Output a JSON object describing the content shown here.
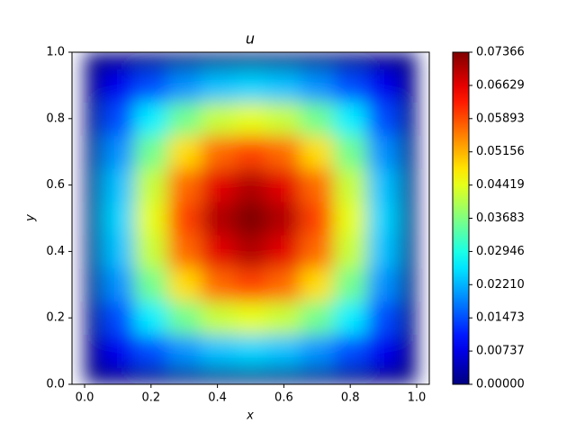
{
  "chart_data": {
    "type": "heatmap",
    "title": "u",
    "x_label": "x",
    "y_label": "y",
    "colormap": "jet",
    "x": [
      0,
      0.1,
      0.2,
      0.3,
      0.4,
      0.5,
      0.6,
      0.7,
      0.8,
      0.9,
      1
    ],
    "y": [
      0,
      0.1,
      0.2,
      0.3,
      0.4,
      0.5,
      0.6,
      0.7,
      0.8,
      0.9,
      1
    ],
    "z": [
      [
        0,
        0,
        0,
        0,
        0,
        0,
        0,
        0,
        0,
        0,
        0
      ],
      [
        0,
        0.008,
        0.0146,
        0.0197,
        0.0231,
        0.0243,
        0.0231,
        0.0197,
        0.0146,
        0.008,
        0
      ],
      [
        0,
        0.0146,
        0.0265,
        0.0358,
        0.042,
        0.0442,
        0.042,
        0.0358,
        0.0265,
        0.0146,
        0
      ],
      [
        0,
        0.0197,
        0.0358,
        0.0484,
        0.0567,
        0.0597,
        0.0567,
        0.0484,
        0.0358,
        0.0197,
        0
      ],
      [
        0,
        0.0231,
        0.042,
        0.0567,
        0.0665,
        0.07,
        0.0665,
        0.0567,
        0.042,
        0.0231,
        0
      ],
      [
        0,
        0.0243,
        0.0442,
        0.0597,
        0.07,
        0.0737,
        0.07,
        0.0597,
        0.0442,
        0.0243,
        0
      ],
      [
        0,
        0.0231,
        0.042,
        0.0567,
        0.0665,
        0.07,
        0.0665,
        0.0567,
        0.042,
        0.0231,
        0
      ],
      [
        0,
        0.0197,
        0.0358,
        0.0484,
        0.0567,
        0.0597,
        0.0567,
        0.0484,
        0.0358,
        0.0197,
        0
      ],
      [
        0,
        0.0146,
        0.0265,
        0.0358,
        0.042,
        0.0442,
        0.042,
        0.0358,
        0.0265,
        0.0146,
        0
      ],
      [
        0,
        0.008,
        0.0146,
        0.0197,
        0.0231,
        0.0243,
        0.0231,
        0.0197,
        0.0146,
        0.008,
        0
      ],
      [
        0,
        0,
        0,
        0,
        0,
        0,
        0,
        0,
        0,
        0,
        0
      ]
    ],
    "xlim": [
      -0.038,
      1.038
    ],
    "ylim": [
      0,
      1
    ],
    "xticks": [
      {
        "value": 0,
        "label": "0.0"
      },
      {
        "value": 0.2,
        "label": "0.2"
      },
      {
        "value": 0.4,
        "label": "0.4"
      },
      {
        "value": 0.6,
        "label": "0.6"
      },
      {
        "value": 0.8,
        "label": "0.8"
      },
      {
        "value": 1,
        "label": "1.0"
      }
    ],
    "yticks": [
      {
        "value": 0,
        "label": "0.0"
      },
      {
        "value": 0.2,
        "label": "0.2"
      },
      {
        "value": 0.4,
        "label": "0.4"
      },
      {
        "value": 0.6,
        "label": "0.6"
      },
      {
        "value": 0.8,
        "label": "0.8"
      },
      {
        "value": 1,
        "label": "1.0"
      }
    ],
    "clim": [
      0,
      0.07366
    ],
    "cticks": [
      {
        "value": 0,
        "label": "0.00000"
      },
      {
        "value": 0.00737,
        "label": "0.00737"
      },
      {
        "value": 0.01473,
        "label": "0.01473"
      },
      {
        "value": 0.0221,
        "label": "0.02210"
      },
      {
        "value": 0.02946,
        "label": "0.02946"
      },
      {
        "value": 0.03683,
        "label": "0.03683"
      },
      {
        "value": 0.04419,
        "label": "0.04419"
      },
      {
        "value": 0.05156,
        "label": "0.05156"
      },
      {
        "value": 0.05893,
        "label": "0.05893"
      },
      {
        "value": 0.06629,
        "label": "0.06629"
      },
      {
        "value": 0.07366,
        "label": "0.07366"
      }
    ]
  }
}
